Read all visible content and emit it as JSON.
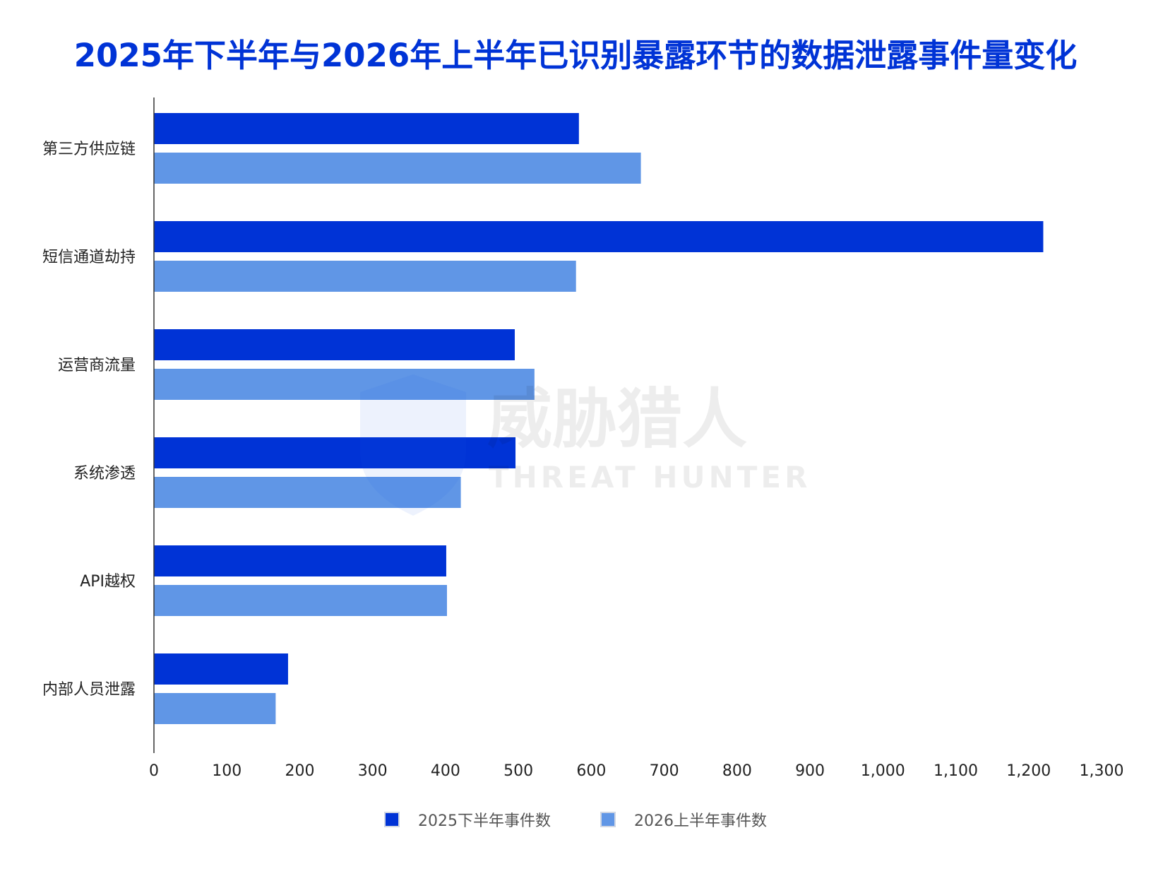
{
  "chart_data": {
    "type": "bar",
    "orientation": "horizontal",
    "title": "2025年下半年与2026年上半年已识别暴露环节的数据泄露事件量变化",
    "categories": [
      "第三方供应链",
      "短信通道劫持",
      "运营商流量",
      "系统渗透",
      "API越权",
      "内部人员泄露"
    ],
    "series": [
      {
        "name": "2025下半年事件数",
        "color": "#0033d6",
        "values": [
          583,
          1220,
          495,
          496,
          401,
          184
        ]
      },
      {
        "name": "2026上半年事件数",
        "color": "#6096e6",
        "values": [
          668,
          579,
          522,
          421,
          402,
          167
        ]
      }
    ],
    "xlim": [
      0,
      1300
    ],
    "xticks": [
      0,
      100,
      200,
      300,
      400,
      500,
      600,
      700,
      800,
      900,
      1000,
      1100,
      1200,
      1300
    ],
    "xtick_labels": [
      "0",
      "100",
      "200",
      "300",
      "400",
      "500",
      "600",
      "700",
      "800",
      "900",
      "1,000",
      "1,100",
      "1,200",
      "1,300"
    ],
    "grid": false,
    "legend_position": "bottom"
  },
  "watermark": {
    "brand_cn": "威胁猎人",
    "brand_en": "THREAT HUNTER"
  }
}
